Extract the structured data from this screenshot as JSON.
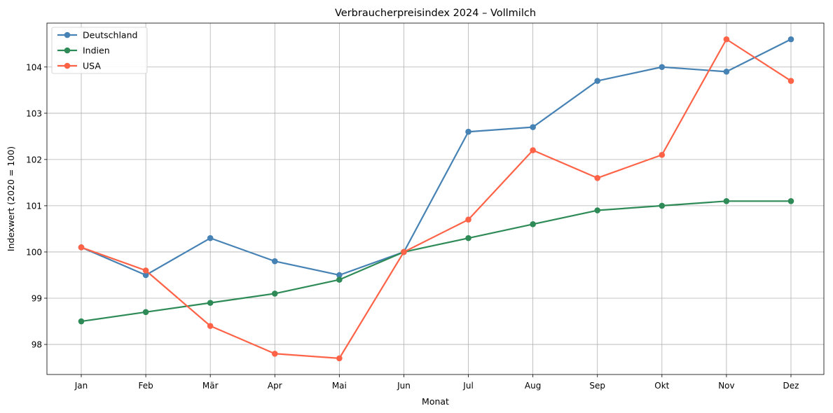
{
  "chart_data": {
    "type": "line",
    "title": "Verbraucherpreisindex 2024 – Vollmilch",
    "xlabel": "Monat",
    "ylabel": "Indexwert (2020 = 100)",
    "categories": [
      "Jan",
      "Feb",
      "Mär",
      "Apr",
      "Mai",
      "Jun",
      "Jul",
      "Aug",
      "Sep",
      "Okt",
      "Nov",
      "Dez"
    ],
    "ylim": [
      97.35,
      104.95
    ],
    "yticks": [
      98,
      99,
      100,
      101,
      102,
      103,
      104
    ],
    "grid": true,
    "legend_position": "top-left",
    "series": [
      {
        "name": "Deutschland",
        "color": "#4682b4",
        "values": [
          100.1,
          99.5,
          100.3,
          99.8,
          99.5,
          100.0,
          102.6,
          102.7,
          103.7,
          104.0,
          103.9,
          104.6
        ]
      },
      {
        "name": "Indien",
        "color": "#2e8b57",
        "values": [
          98.5,
          98.7,
          98.9,
          99.1,
          99.4,
          100.0,
          100.3,
          100.6,
          100.9,
          101.0,
          101.1,
          101.1
        ]
      },
      {
        "name": "USA",
        "color": "#ff6347",
        "values": [
          100.1,
          99.6,
          98.4,
          97.8,
          97.7,
          100.0,
          100.7,
          102.2,
          101.6,
          102.1,
          104.6,
          103.7
        ]
      }
    ]
  }
}
